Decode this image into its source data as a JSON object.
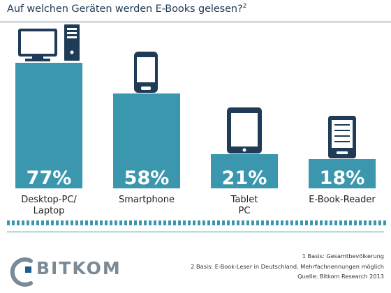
{
  "title": {
    "text": "Auf welchen Geräten werden E-Books gelesen?",
    "sup": "2"
  },
  "colors": {
    "bar": "#3a97ad",
    "icon": "#1f3b57",
    "dash": "#3a97ad",
    "logo_gray": "#7a8a96",
    "logo_blue": "#1f5d8c"
  },
  "chart_data": {
    "type": "bar",
    "categories": [
      "Desktop-PC/ Laptop",
      "Smartphone",
      "Tablet PC",
      "E-Book-Reader"
    ],
    "values": [
      77,
      58,
      21,
      18
    ],
    "value_labels": [
      "77%",
      "58%",
      "21%",
      "18%"
    ],
    "icons": [
      "desktop-pc-icon",
      "smartphone-icon",
      "tablet-icon",
      "ebook-reader-icon"
    ],
    "ylim": [
      0,
      77
    ]
  },
  "footnotes": [
    "1 Basis: Gesamtbevölkerung",
    "2 Basis: E-Book-Leser in Deutschland, Mehrfachnennungen möglich",
    "Quelle: Bitkom Research 2013"
  ],
  "logo": {
    "text": "BITKOM"
  }
}
